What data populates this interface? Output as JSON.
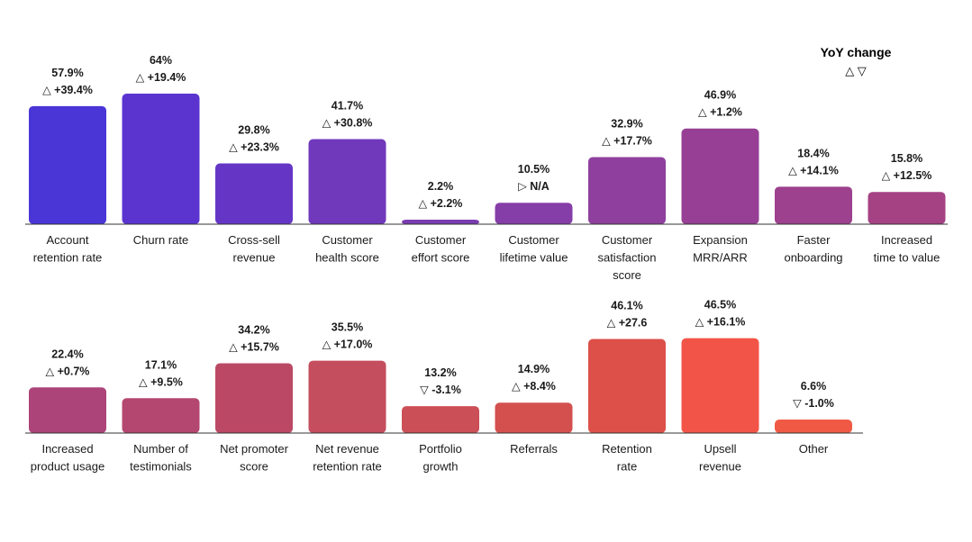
{
  "chart_data": {
    "type": "bar",
    "legend": {
      "title": "YoY change",
      "symbols": "△ ▽"
    },
    "value_suffix": "%",
    "rows": [
      {
        "categories": [
          [
            "Account",
            "retention rate"
          ],
          [
            "Churn rate"
          ],
          [
            "Cross-sell",
            "revenue"
          ],
          [
            "Customer",
            "health score"
          ],
          [
            "Customer",
            "effort score"
          ],
          [
            "Customer",
            "lifetime value"
          ],
          [
            "Customer",
            "satisfaction",
            "score"
          ],
          [
            "Expansion",
            "MRR/ARR"
          ],
          [
            "Faster",
            "onboarding"
          ],
          [
            "Increased",
            "time to value"
          ]
        ],
        "values": [
          57.9,
          64,
          29.8,
          41.7,
          2.2,
          10.5,
          32.9,
          46.9,
          18.4,
          15.8
        ],
        "value_labels": [
          "57.9%",
          "64%",
          "29.8%",
          "41.7%",
          "2.2%",
          "10.5%",
          "32.9%",
          "46.9%",
          "18.4%",
          "15.8%"
        ],
        "changes": [
          "△ +39.4%",
          "△ +19.4%",
          "△ +23.3%",
          "△ +30.8%",
          "△ +2.2%",
          "▷ N/A",
          "△ +17.7%",
          "△ +1.2%",
          "△ +14.1%",
          "△ +12.5%"
        ],
        "colors": [
          "#4a35d6",
          "#5b34cf",
          "#6536c6",
          "#7039bb",
          "#7a3cb0",
          "#853ea7",
          "#8f409e",
          "#973f95",
          "#9d408d",
          "#a54284"
        ]
      },
      {
        "categories": [
          [
            "Increased",
            "product usage"
          ],
          [
            "Number of",
            "testimonials"
          ],
          [
            "Net promoter",
            "score"
          ],
          [
            "Net revenue",
            "retention rate"
          ],
          [
            "Portfolio",
            "growth"
          ],
          [
            "Referrals"
          ],
          [
            "Retention",
            "rate"
          ],
          [
            "Upsell",
            "revenue"
          ],
          [
            "Other"
          ]
        ],
        "values": [
          22.4,
          17.1,
          34.2,
          35.5,
          13.2,
          14.9,
          46.1,
          46.5,
          6.6
        ],
        "value_labels": [
          "22.4%",
          "17.1%",
          "34.2%",
          "35.5%",
          "13.2%",
          "14.9%",
          "46.1%",
          "46.5%",
          "6.6%"
        ],
        "changes": [
          "△ +0.7%",
          "△ +9.5%",
          "△ +15.7%",
          "△ +17.0%",
          "▽ -3.1%",
          "△ +8.4%",
          "△ +27.6",
          "△ +16.1%",
          "▽ -1.0%"
        ],
        "colors": [
          "#ad4479",
          "#b4476f",
          "#bb4966",
          "#c44d5e",
          "#cb4f57",
          "#d3504f",
          "#dc5049",
          "#f35448",
          "#f05a45"
        ]
      }
    ],
    "ylim": [
      0,
      64
    ]
  }
}
